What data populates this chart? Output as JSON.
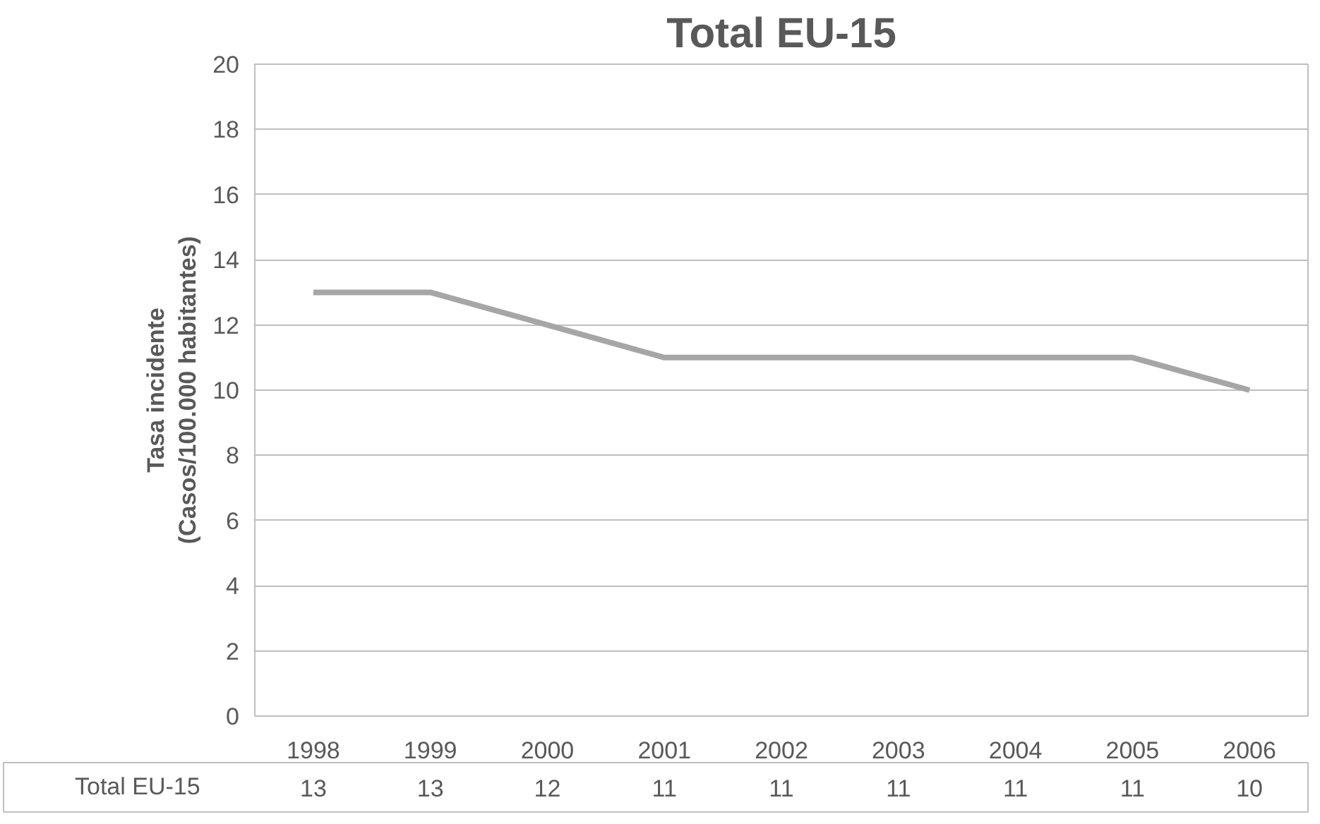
{
  "chart_data": {
    "type": "line",
    "title": "Total EU-15",
    "ylabel": "Tasa incidente\n(Casos/100.000 habitantes)",
    "categories": [
      "1998",
      "1999",
      "2000",
      "2001",
      "2002",
      "2003",
      "2004",
      "2005",
      "2006"
    ],
    "series": [
      {
        "name": "Total EU-15",
        "color": "#a6a6a6",
        "values": [
          13,
          13,
          12,
          11,
          11,
          11,
          11,
          11,
          10
        ]
      }
    ],
    "ylim": [
      0,
      20
    ],
    "yticks": [
      0,
      2,
      4,
      6,
      8,
      10,
      12,
      14,
      16,
      18,
      20
    ],
    "grid": "y",
    "data_labels": true,
    "legend": "bottom left",
    "marker": "none",
    "line_style": "solid"
  }
}
